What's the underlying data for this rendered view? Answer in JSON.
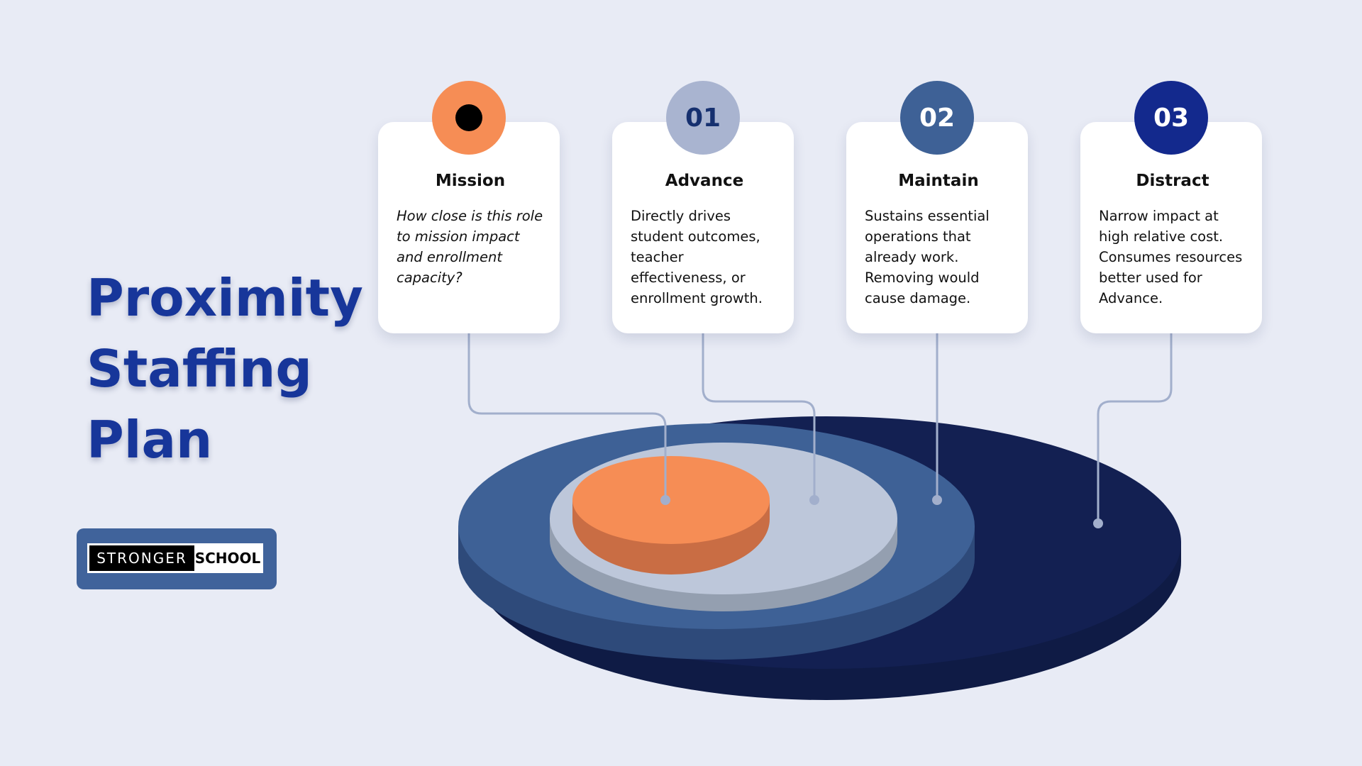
{
  "title": {
    "line1": "Proximity",
    "line2": "Staffing",
    "line3": "Plan"
  },
  "logo": {
    "part1": "STRONGER",
    "part2": "SCHOOL"
  },
  "cards": [
    {
      "badge_label": "",
      "badge_color": "#f68d55",
      "badge_text_color": "#000000",
      "title": "Mission",
      "text": "How close is this role to mission impact and enrollment capacity?"
    },
    {
      "badge_label": "01",
      "badge_color": "#a9b4d0",
      "badge_text_color": "#16306f",
      "title": "Advance",
      "text": "Directly drives student outcomes, teacher effectiveness, or enrollment growth."
    },
    {
      "badge_label": "02",
      "badge_color": "#3e6196",
      "badge_text_color": "#ffffff",
      "title": "Maintain",
      "text": "Sustains essential operations that already work. Removing would cause damage."
    },
    {
      "badge_label": "03",
      "badge_color": "#13298d",
      "badge_text_color": "#ffffff",
      "title": "Distract",
      "text": "Narrow impact at high relative cost. Consumes resources better used for Advance."
    }
  ],
  "colors": {
    "background": "#e8ebf5",
    "title": "#17369a",
    "connector": "#a2afcc",
    "layer_outer": "#132052",
    "layer_mid": "#3e6196",
    "layer_inner": "#bdc7da",
    "layer_core": "#f68d55"
  }
}
